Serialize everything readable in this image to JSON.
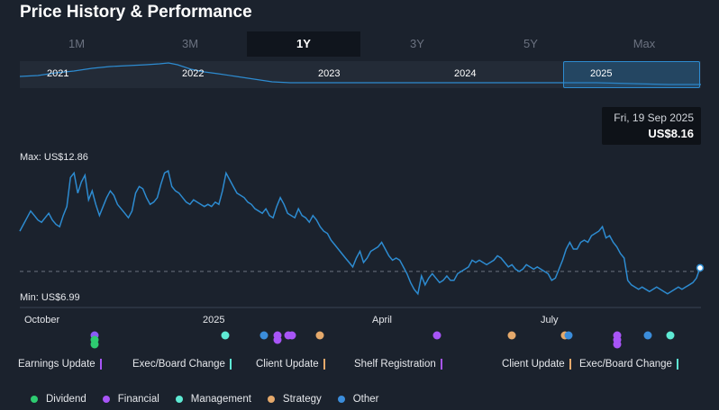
{
  "title": "Price History & Performance",
  "tabs": [
    {
      "label": "1M",
      "active": false
    },
    {
      "label": "3M",
      "active": false
    },
    {
      "label": "1Y",
      "active": true
    },
    {
      "label": "3Y",
      "active": false
    },
    {
      "label": "5Y",
      "active": false
    },
    {
      "label": "Max",
      "active": false
    }
  ],
  "range_navigator": {
    "years": [
      "2021",
      "2022",
      "2023",
      "2024",
      "2025"
    ],
    "selected": "2025",
    "line_color": "#2d8bd0"
  },
  "tooltip": {
    "date": "Fri, 19 Sep 2025",
    "price": "US$8.16"
  },
  "chart_data": {
    "type": "line",
    "xlabels": [
      "October",
      "2025",
      "April",
      "July"
    ],
    "max_label": "Max: US$12.86",
    "min_label": "Min: US$6.99",
    "y_range": [
      6.99,
      12.86
    ],
    "line_color": "#2d8bd0",
    "dashed_reference_y": 8.0,
    "series": [
      {
        "values": [
          9.8,
          10.1,
          10.4,
          10.7,
          10.5,
          10.3,
          10.2,
          10.4,
          10.6,
          10.3,
          10.1,
          10.0,
          10.5,
          10.9,
          12.2,
          12.4,
          11.5,
          12.0,
          12.3,
          11.2,
          11.6,
          11.0,
          10.5,
          10.9,
          11.3,
          11.6,
          11.4,
          11.0,
          10.8,
          10.6,
          10.4,
          10.7,
          11.5,
          11.8,
          11.7,
          11.3,
          11.0,
          11.1,
          11.3,
          11.9,
          12.4,
          12.5,
          11.8,
          11.6,
          11.5,
          11.3,
          11.1,
          11.0,
          11.2,
          11.1,
          11.0,
          10.9,
          11.0,
          10.9,
          11.1,
          11.0,
          11.6,
          12.4,
          12.1,
          11.8,
          11.5,
          11.4,
          11.3,
          11.1,
          11.0,
          10.8,
          10.7,
          10.6,
          10.8,
          10.5,
          10.4,
          10.9,
          11.3,
          11.0,
          10.6,
          10.5,
          10.4,
          10.8,
          10.5,
          10.4,
          10.2,
          10.5,
          10.3,
          10.0,
          9.8,
          9.7,
          9.4,
          9.2,
          9.0,
          8.8,
          8.6,
          8.4,
          8.2,
          8.6,
          8.9,
          8.4,
          8.6,
          8.9,
          9.0,
          9.1,
          9.3,
          9.0,
          8.7,
          8.5,
          8.6,
          8.5,
          8.2,
          7.9,
          7.5,
          7.2,
          7.0,
          7.8,
          7.4,
          7.7,
          7.9,
          7.7,
          7.5,
          7.6,
          7.8,
          7.6,
          7.6,
          7.9,
          8.0,
          8.1,
          8.2,
          8.5,
          8.4,
          8.5,
          8.4,
          8.3,
          8.4,
          8.5,
          8.7,
          8.6,
          8.4,
          8.2,
          8.3,
          8.1,
          8.0,
          8.1,
          8.3,
          8.2,
          8.1,
          8.2,
          8.1,
          8.0,
          7.9,
          7.6,
          7.7,
          8.1,
          8.5,
          9.0,
          9.3,
          9.0,
          9.0,
          9.3,
          9.4,
          9.3,
          9.6,
          9.7,
          9.8,
          10.0,
          9.5,
          9.6,
          9.3,
          9.1,
          8.8,
          8.6,
          7.6,
          7.4,
          7.3,
          7.2,
          7.3,
          7.2,
          7.1,
          7.2,
          7.3,
          7.2,
          7.1,
          7.0,
          7.1,
          7.2,
          7.3,
          7.2,
          7.3,
          7.4,
          7.5,
          7.7,
          8.16
        ]
      }
    ],
    "events": [
      {
        "x": 105,
        "color": "#8b5cf6"
      },
      {
        "x": 105,
        "color": "#2ecc71"
      },
      {
        "x": 105,
        "color": "#2ecc71"
      },
      {
        "x": 250,
        "color": "#5eead4"
      },
      {
        "x": 293,
        "color": "#3b8ddb"
      },
      {
        "x": 308,
        "color": "#a855f7"
      },
      {
        "x": 308,
        "color": "#a855f7"
      },
      {
        "x": 320,
        "color": "#a855f7"
      },
      {
        "x": 324,
        "color": "#a855f7"
      },
      {
        "x": 355,
        "color": "#e5a96b"
      },
      {
        "x": 485,
        "color": "#a855f7"
      },
      {
        "x": 568,
        "color": "#e5a96b"
      },
      {
        "x": 627,
        "color": "#e5a96b"
      },
      {
        "x": 631,
        "color": "#3b8ddb"
      },
      {
        "x": 685,
        "color": "#a855f7"
      },
      {
        "x": 685,
        "color": "#a855f7"
      },
      {
        "x": 685,
        "color": "#a855f7"
      },
      {
        "x": 719,
        "color": "#3b8ddb"
      },
      {
        "x": 744,
        "color": "#5eead4"
      }
    ]
  },
  "event_labels": [
    {
      "text": "Earnings Update",
      "bar_color": "#a855f7"
    },
    {
      "text": "Exec/Board Change",
      "bar_color": "#5eead4"
    },
    {
      "text": "Client Update",
      "bar_color": "#e5a96b"
    },
    {
      "text": "Shelf Registration",
      "bar_color": "#a855f7"
    },
    {
      "text": "Client Update",
      "bar_color": "#e5a96b"
    },
    {
      "text": "Exec/Board Change",
      "bar_color": "#5eead4"
    }
  ],
  "legend": [
    {
      "label": "Dividend",
      "color": "#2ecc71"
    },
    {
      "label": "Financial",
      "color": "#a855f7"
    },
    {
      "label": "Management",
      "color": "#5eead4"
    },
    {
      "label": "Strategy",
      "color": "#e5a96b"
    },
    {
      "label": "Other",
      "color": "#3b8ddb"
    }
  ]
}
